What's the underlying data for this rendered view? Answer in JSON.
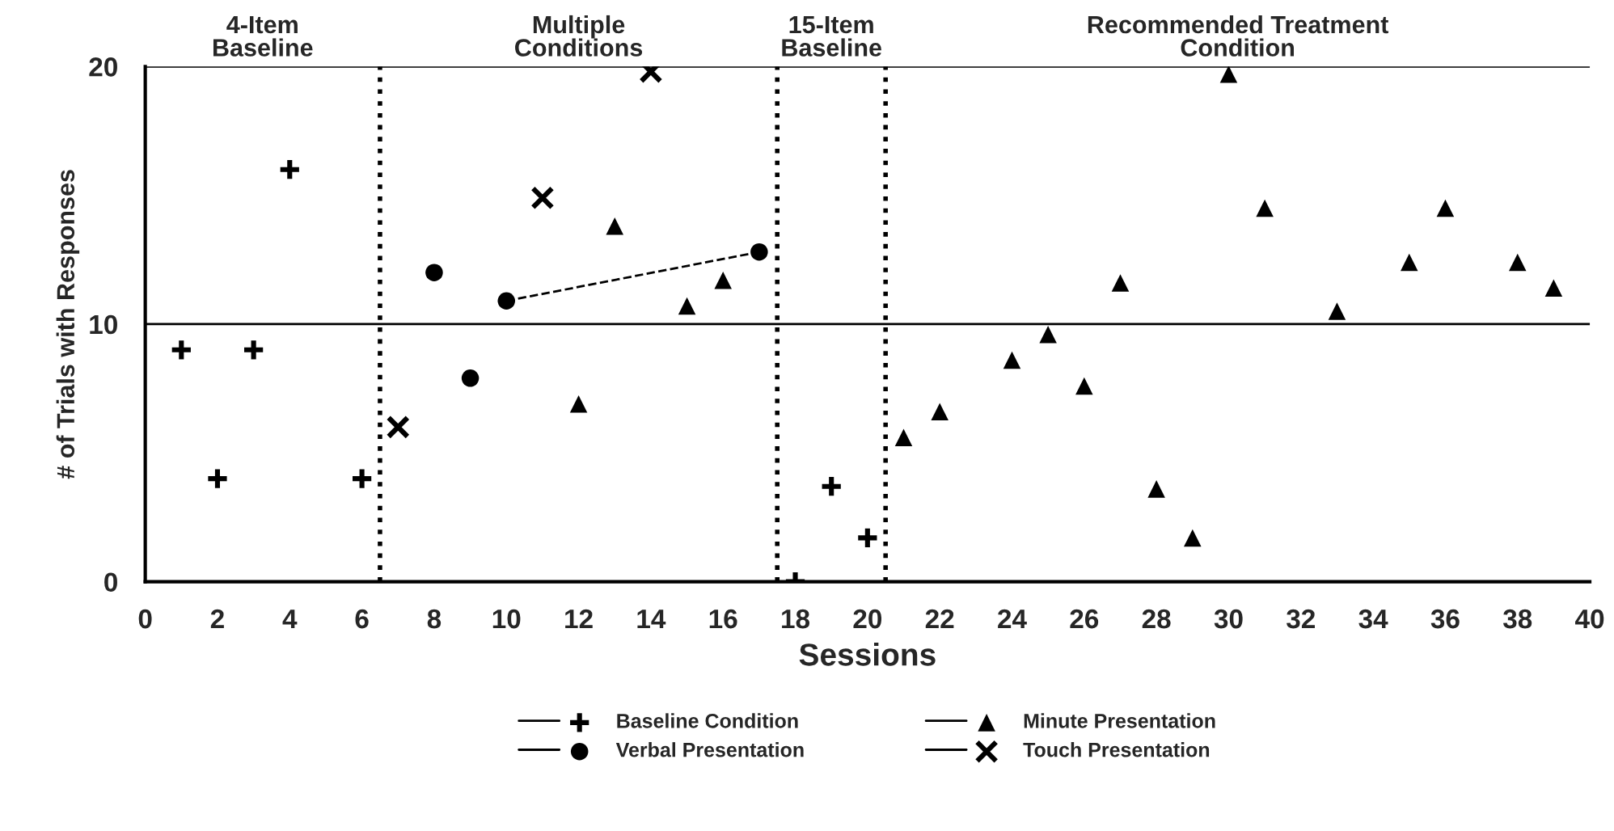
{
  "chart_data": {
    "type": "scatter",
    "xlabel": "Sessions",
    "ylabel": "# of Trials with Responses",
    "xlim": [
      0,
      40
    ],
    "xticks": [
      0,
      2,
      4,
      6,
      8,
      10,
      12,
      14,
      16,
      18,
      20,
      22,
      24,
      26,
      28,
      30,
      32,
      34,
      36,
      38,
      40
    ],
    "ylim": [
      0,
      20
    ],
    "yticks": [
      0,
      10,
      20
    ],
    "grid": "y",
    "legend": "bottom",
    "series": [
      {
        "name": "Baseline Condition",
        "color": "#000000",
        "marker": "plus",
        "x": [
          1,
          2,
          3,
          4,
          6,
          18,
          19,
          20
        ],
        "values": [
          9,
          4,
          9,
          16,
          4,
          0,
          3.7,
          1.7
        ]
      },
      {
        "name": "Verbal Presentation",
        "color": "#000000",
        "marker": "circle",
        "x": [
          8,
          9,
          10,
          17
        ],
        "values": [
          12,
          7.9,
          10.9,
          12.8
        ]
      },
      {
        "name": "Minute Presentation",
        "color": "#000000",
        "marker": "triangle",
        "x": [
          12,
          13,
          15,
          16,
          21,
          22,
          24,
          25,
          26,
          27,
          28,
          29,
          30,
          31,
          33,
          35,
          36,
          38,
          39
        ],
        "values": [
          6.9,
          13.8,
          10.7,
          11.7,
          5.6,
          6.6,
          8.6,
          9.6,
          7.6,
          11.6,
          3.6,
          1.7,
          19.7,
          14.5,
          10.5,
          12.4,
          14.5,
          12.4,
          11.4
        ]
      },
      {
        "name": "Touch Presentation",
        "color": "#000000",
        "marker": "cross",
        "x": [
          7,
          11,
          14
        ],
        "values": [
          6,
          14.9,
          19.8
        ]
      },
      {
        "type": "line",
        "color": "#000000",
        "line_style": "dashed",
        "marker": "none",
        "x": [
          10,
          17
        ],
        "values": [
          10.9,
          12.8
        ]
      }
    ],
    "ref_lines": [
      {
        "axis": "x",
        "value": 6.5,
        "line_style": "dotted",
        "color": "#000000"
      },
      {
        "axis": "x",
        "value": 17.5,
        "line_style": "dotted",
        "color": "#000000"
      },
      {
        "axis": "x",
        "value": 20.5,
        "line_style": "dotted",
        "color": "#000000"
      }
    ],
    "annotations": [
      "4-Item\nBaseline",
      "Multiple\nConditions",
      "15-Item\nBaseline",
      "Recommended Treatment\nCondition"
    ]
  }
}
